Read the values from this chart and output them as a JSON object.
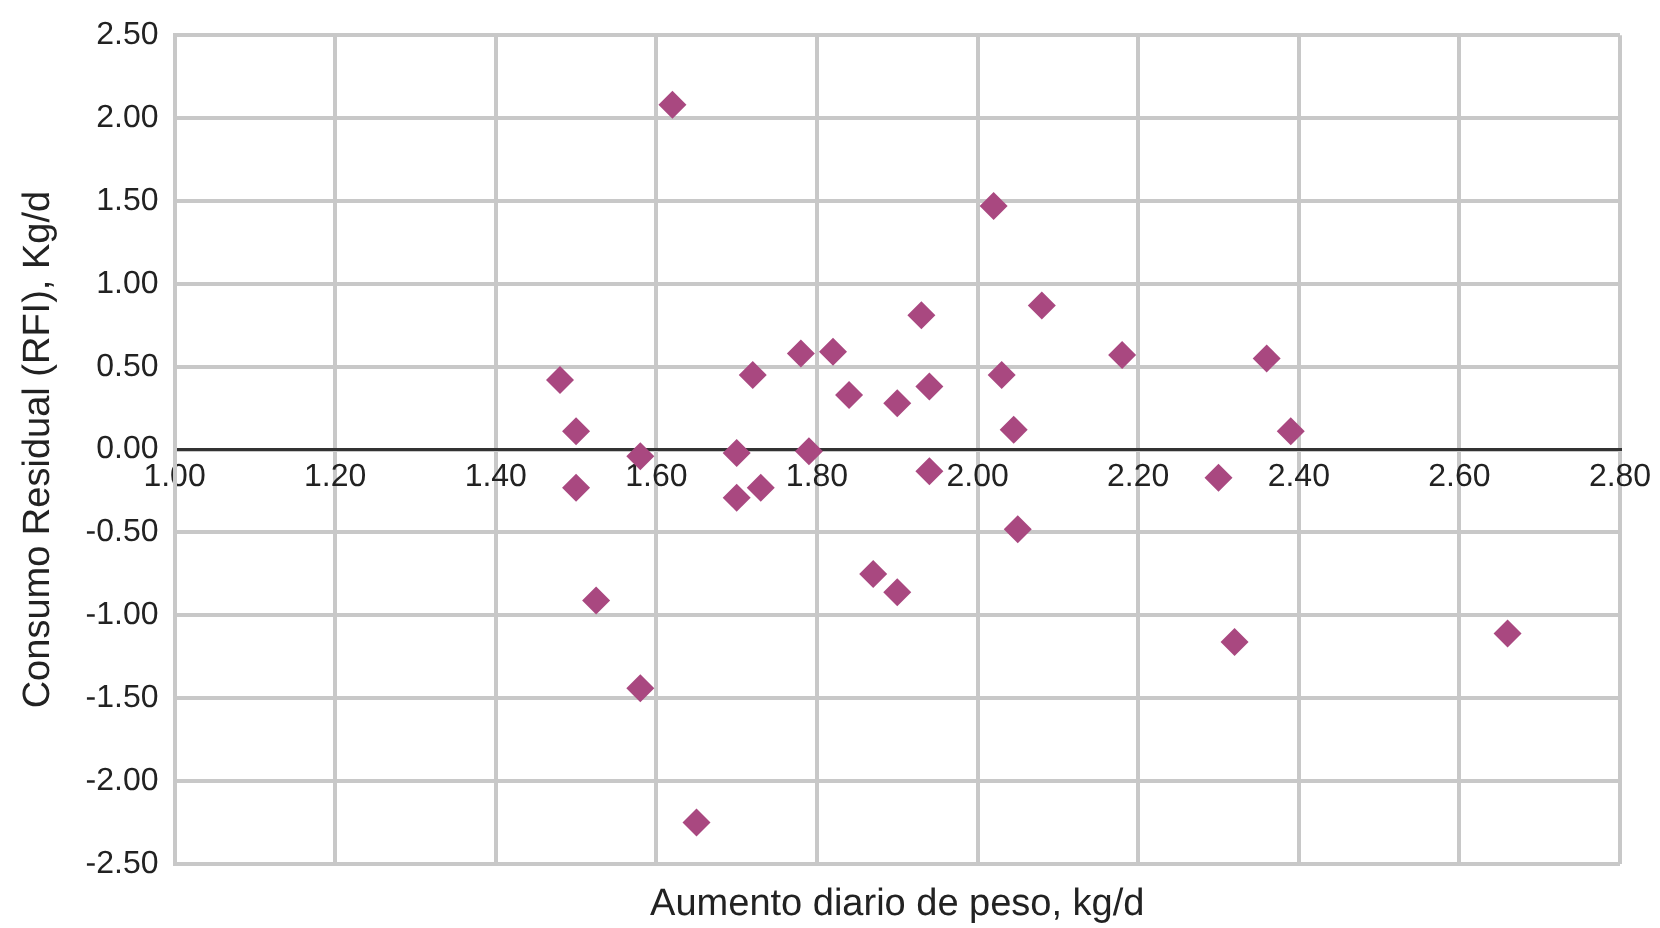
{
  "chart_data": {
    "type": "scatter",
    "xlabel": "Aumento diario de peso, kg/d",
    "ylabel": "Consumo Residual (RFI), Kg/d",
    "xlim": [
      1.0,
      2.8
    ],
    "xticks": [
      {
        "value": 1.0,
        "label": "1.00"
      },
      {
        "value": 1.2,
        "label": "1.20"
      },
      {
        "value": 1.4,
        "label": "1.40"
      },
      {
        "value": 1.6,
        "label": "1.60"
      },
      {
        "value": 1.8,
        "label": "1.80"
      },
      {
        "value": 2.0,
        "label": "2.00"
      },
      {
        "value": 2.2,
        "label": "2.20"
      },
      {
        "value": 2.4,
        "label": "2.40"
      },
      {
        "value": 2.6,
        "label": "2.60"
      },
      {
        "value": 2.8,
        "label": "2.80"
      }
    ],
    "ylim": [
      -2.5,
      2.5
    ],
    "yticks": [
      {
        "value": -2.5,
        "label": "-2.50"
      },
      {
        "value": -2.0,
        "label": "-2.00"
      },
      {
        "value": -1.5,
        "label": "-1.50"
      },
      {
        "value": -1.0,
        "label": "-1.00"
      },
      {
        "value": -0.5,
        "label": "-0.50"
      },
      {
        "value": 0,
        "label": "0.00"
      },
      {
        "value": 0.5,
        "label": "0.50"
      },
      {
        "value": 1.0,
        "label": "1.00"
      },
      {
        "value": 1.5,
        "label": "1.50"
      },
      {
        "value": 2.0,
        "label": "2.00"
      },
      {
        "value": 2.5,
        "label": "2.50"
      }
    ],
    "grid": true,
    "legend": false,
    "marker": "diamond",
    "series": [
      {
        "color": "#a94880",
        "x": [
          1.48,
          1.5,
          1.5,
          1.525,
          1.58,
          1.58,
          1.62,
          1.65,
          1.7,
          1.7,
          1.72,
          1.73,
          1.78,
          1.79,
          1.82,
          1.84,
          1.87,
          1.9,
          1.9,
          1.93,
          1.94,
          1.94,
          2.02,
          2.03,
          2.045,
          2.05,
          2.08,
          2.18,
          2.3,
          2.32,
          2.36,
          2.39,
          2.66
        ],
        "values": [
          0.42,
          0.11,
          -0.23,
          -0.91,
          -0.04,
          -1.44,
          2.08,
          -2.25,
          -0.29,
          -0.02,
          0.45,
          -0.23,
          0.58,
          -0.01,
          0.59,
          0.33,
          -0.75,
          -0.86,
          0.28,
          0.81,
          0.38,
          -0.13,
          1.47,
          0.45,
          0.12,
          -0.48,
          0.87,
          0.57,
          -0.17,
          -1.16,
          0.55,
          0.11,
          -1.11
        ]
      }
    ]
  }
}
